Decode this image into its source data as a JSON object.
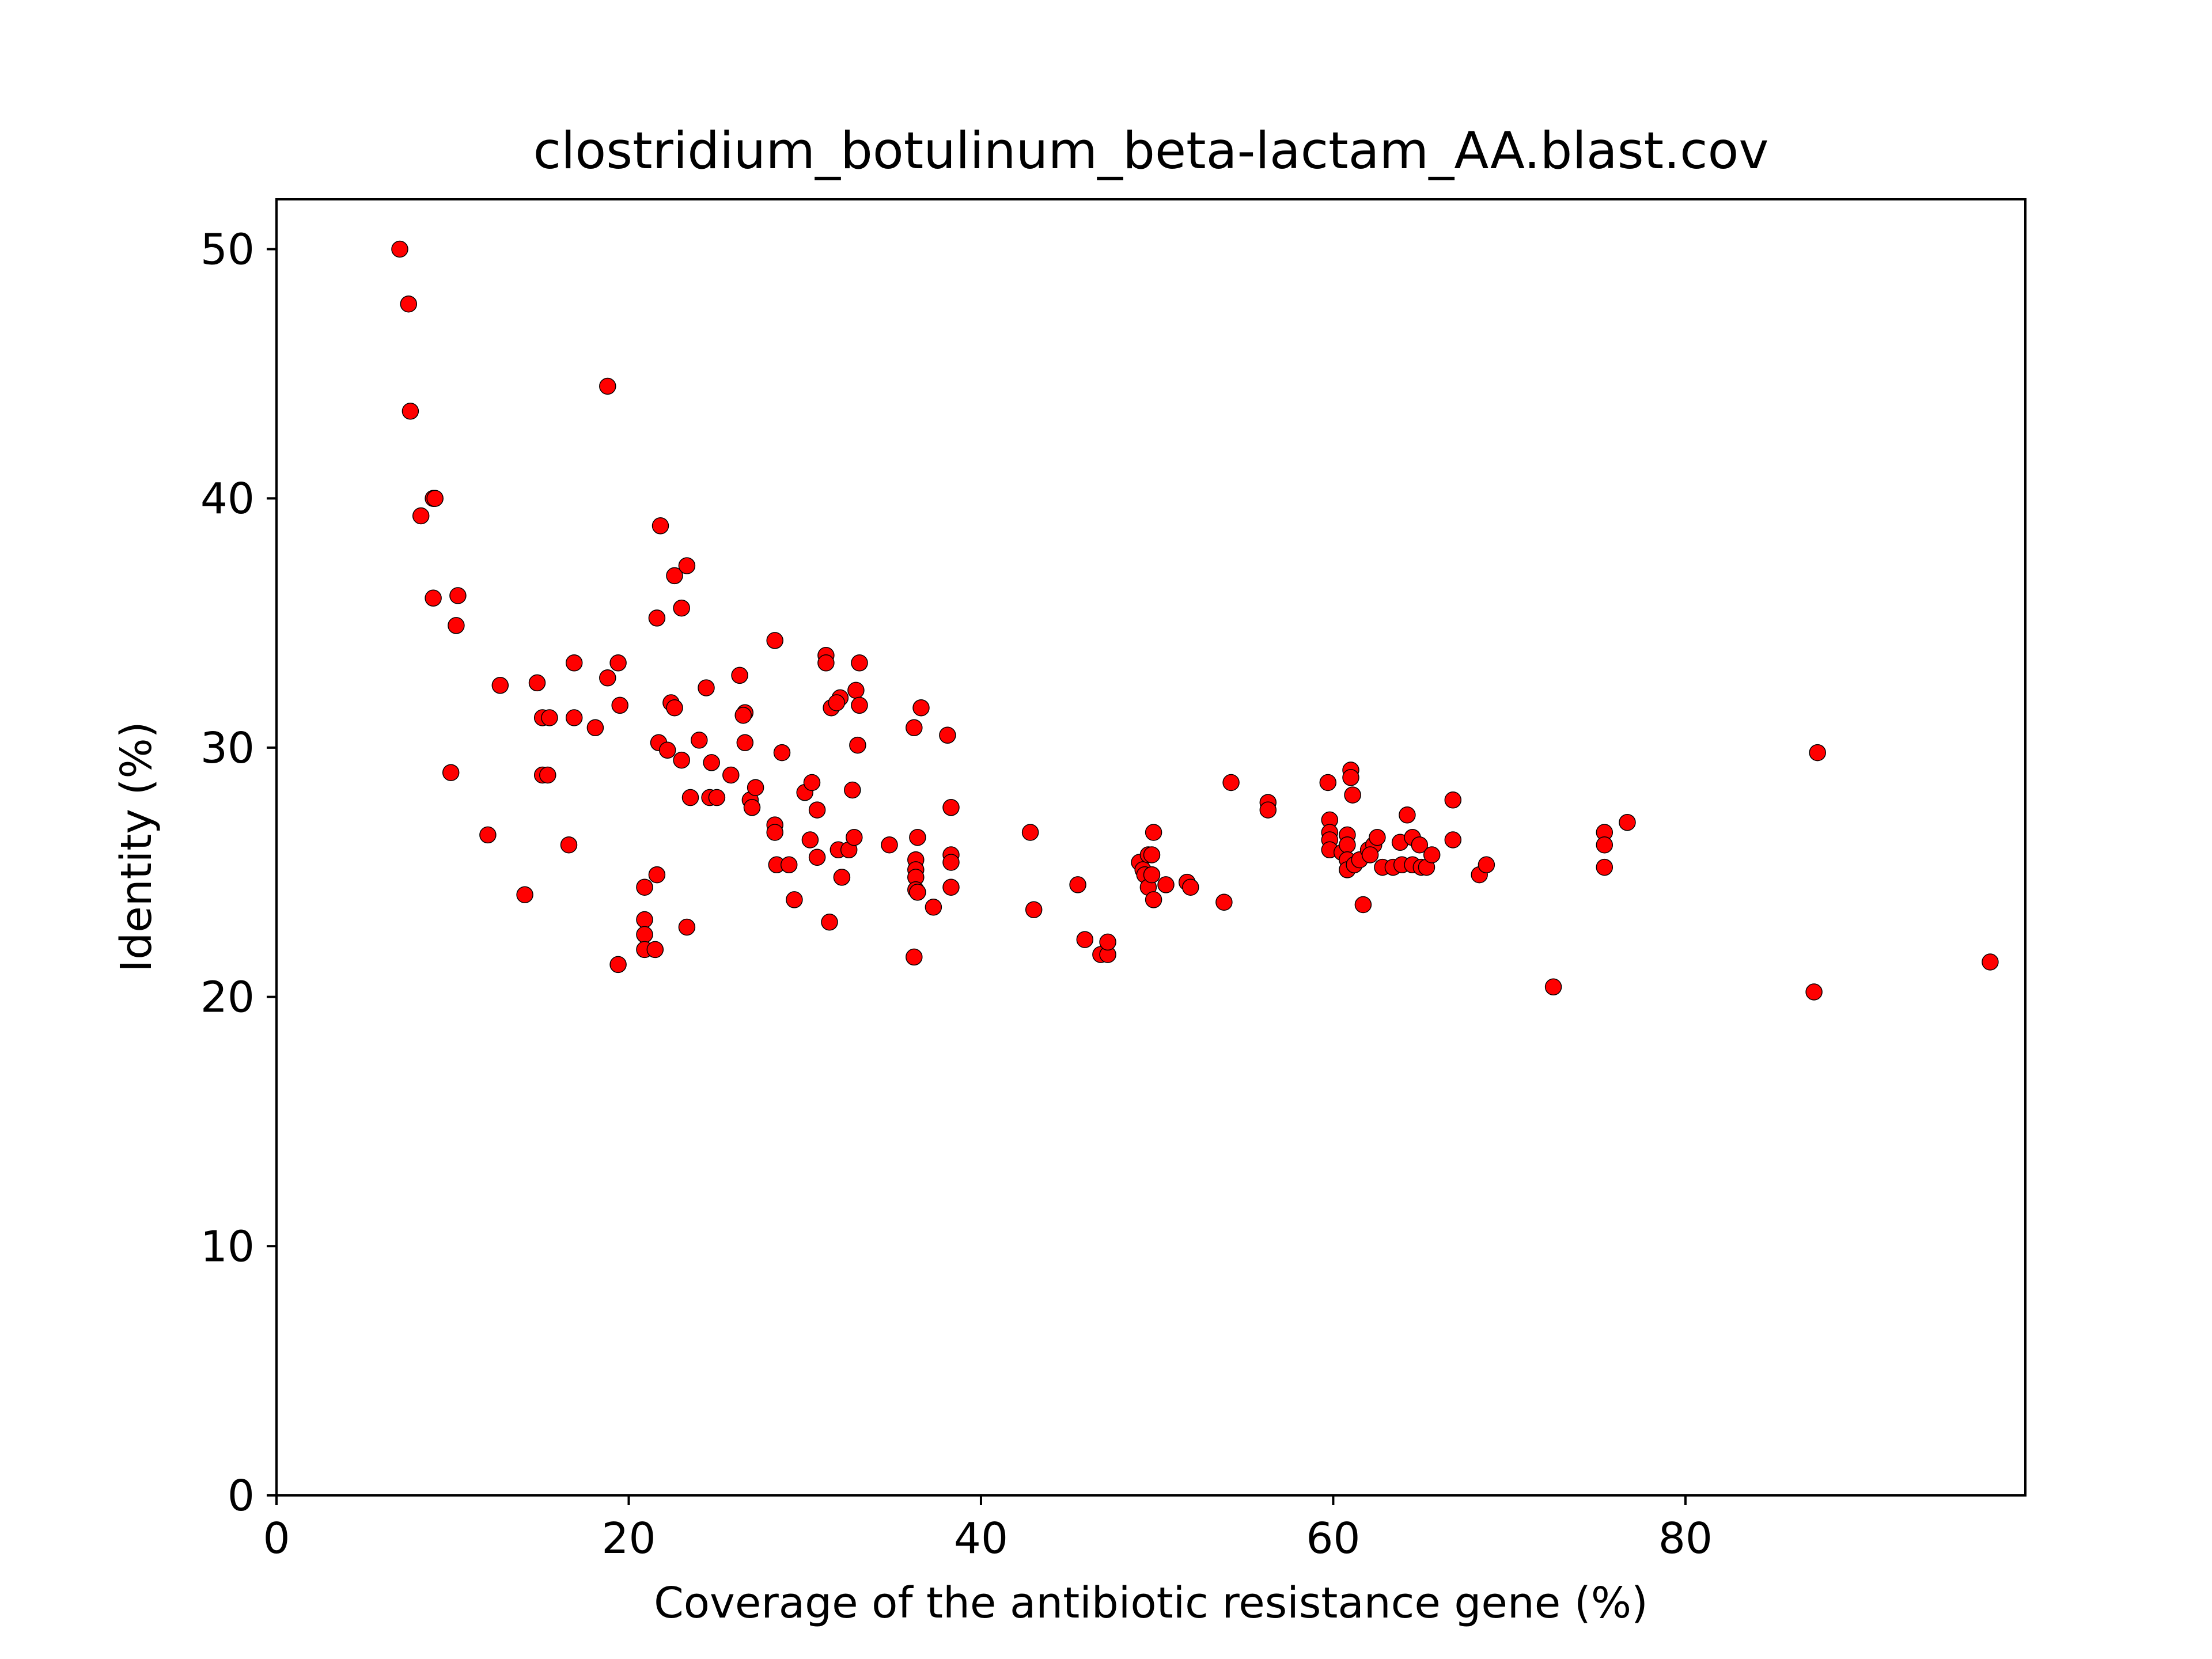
{
  "chart_data": {
    "type": "scatter",
    "title": "clostridium_botulinum_beta-lactam_AA.blast.cov",
    "xlabel": "Coverage of the antibiotic resistance gene (%)",
    "ylabel": "Identity (%)",
    "xlim": [
      0,
      99.3
    ],
    "ylim": [
      0,
      52
    ],
    "xticks": [
      "0",
      "20",
      "40",
      "60",
      "80"
    ],
    "yticks": [
      "0",
      "10",
      "20",
      "30",
      "40",
      "50"
    ],
    "grid": false,
    "marker_color": "#ff0000",
    "marker_edge_color": "#000000",
    "points": [
      [
        7.0,
        50.0
      ],
      [
        7.5,
        47.8
      ],
      [
        7.6,
        43.5
      ],
      [
        8.2,
        39.3
      ],
      [
        8.9,
        40.0
      ],
      [
        9.0,
        40.0
      ],
      [
        8.9,
        36.0
      ],
      [
        10.3,
        36.1
      ],
      [
        10.2,
        34.9
      ],
      [
        9.9,
        29.0
      ],
      [
        12.0,
        26.5
      ],
      [
        12.7,
        32.5
      ],
      [
        14.1,
        24.1
      ],
      [
        14.8,
        32.6
      ],
      [
        15.1,
        31.2
      ],
      [
        15.5,
        31.2
      ],
      [
        15.1,
        28.9
      ],
      [
        15.4,
        28.9
      ],
      [
        16.6,
        26.1
      ],
      [
        16.9,
        33.4
      ],
      [
        16.9,
        31.2
      ],
      [
        18.1,
        30.8
      ],
      [
        18.8,
        32.8
      ],
      [
        19.4,
        33.4
      ],
      [
        19.5,
        31.7
      ],
      [
        19.4,
        21.3
      ],
      [
        18.8,
        44.5
      ],
      [
        21.8,
        38.9
      ],
      [
        22.6,
        36.9
      ],
      [
        23.3,
        37.3
      ],
      [
        21.6,
        35.2
      ],
      [
        23.0,
        35.6
      ],
      [
        22.4,
        31.8
      ],
      [
        22.6,
        31.6
      ],
      [
        24.4,
        32.4
      ],
      [
        21.7,
        30.2
      ],
      [
        22.2,
        29.9
      ],
      [
        23.0,
        29.5
      ],
      [
        24.0,
        30.3
      ],
      [
        24.7,
        29.4
      ],
      [
        23.5,
        28.0
      ],
      [
        24.6,
        28.0
      ],
      [
        25.0,
        28.0
      ],
      [
        25.8,
        28.9
      ],
      [
        21.6,
        24.9
      ],
      [
        20.9,
        24.4
      ],
      [
        20.9,
        23.1
      ],
      [
        20.9,
        22.5
      ],
      [
        20.9,
        21.9
      ],
      [
        21.5,
        21.9
      ],
      [
        23.3,
        22.8
      ],
      [
        26.3,
        32.9
      ],
      [
        26.6,
        31.4
      ],
      [
        26.5,
        31.3
      ],
      [
        26.6,
        30.2
      ],
      [
        26.9,
        27.9
      ],
      [
        27.0,
        27.6
      ],
      [
        27.2,
        28.4
      ],
      [
        28.3,
        34.3
      ],
      [
        28.3,
        26.9
      ],
      [
        28.3,
        26.6
      ],
      [
        28.7,
        29.8
      ],
      [
        28.4,
        25.3
      ],
      [
        29.1,
        25.3
      ],
      [
        29.4,
        23.9
      ],
      [
        30.0,
        28.2
      ],
      [
        30.4,
        28.6
      ],
      [
        30.3,
        26.3
      ],
      [
        30.7,
        27.5
      ],
      [
        30.7,
        25.6
      ],
      [
        31.2,
        33.7
      ],
      [
        31.2,
        33.4
      ],
      [
        31.5,
        31.6
      ],
      [
        32.0,
        32.0
      ],
      [
        31.8,
        31.8
      ],
      [
        32.1,
        24.8
      ],
      [
        31.9,
        25.9
      ],
      [
        32.5,
        25.9
      ],
      [
        31.4,
        23.0
      ],
      [
        32.8,
        26.4
      ],
      [
        32.7,
        28.3
      ],
      [
        32.9,
        32.3
      ],
      [
        33.1,
        31.7
      ],
      [
        33.0,
        30.1
      ],
      [
        33.1,
        33.4
      ],
      [
        34.8,
        26.1
      ],
      [
        36.2,
        30.8
      ],
      [
        36.6,
        31.6
      ],
      [
        36.4,
        26.4
      ],
      [
        36.3,
        25.5
      ],
      [
        36.3,
        25.1
      ],
      [
        36.3,
        24.8
      ],
      [
        36.3,
        24.3
      ],
      [
        36.4,
        24.2
      ],
      [
        36.2,
        21.6
      ],
      [
        37.3,
        23.6
      ],
      [
        38.1,
        30.5
      ],
      [
        38.3,
        27.6
      ],
      [
        38.3,
        25.7
      ],
      [
        38.3,
        25.4
      ],
      [
        38.3,
        24.4
      ],
      [
        42.8,
        26.6
      ],
      [
        43.0,
        23.5
      ],
      [
        45.5,
        24.5
      ],
      [
        45.9,
        22.3
      ],
      [
        46.8,
        21.7
      ],
      [
        47.2,
        21.7
      ],
      [
        47.2,
        22.2
      ],
      [
        49.0,
        25.4
      ],
      [
        49.2,
        25.1
      ],
      [
        49.5,
        25.7
      ],
      [
        49.3,
        24.9
      ],
      [
        49.5,
        24.4
      ],
      [
        49.7,
        25.7
      ],
      [
        49.7,
        24.9
      ],
      [
        49.8,
        23.9
      ],
      [
        49.8,
        26.6
      ],
      [
        50.5,
        24.5
      ],
      [
        51.7,
        24.6
      ],
      [
        51.9,
        24.4
      ],
      [
        53.8,
        23.8
      ],
      [
        54.2,
        28.6
      ],
      [
        56.3,
        27.8
      ],
      [
        56.3,
        27.5
      ],
      [
        59.7,
        28.6
      ],
      [
        59.8,
        27.1
      ],
      [
        59.8,
        26.6
      ],
      [
        59.8,
        26.3
      ],
      [
        59.8,
        25.9
      ],
      [
        60.5,
        25.8
      ],
      [
        60.8,
        26.5
      ],
      [
        60.8,
        26.1
      ],
      [
        60.8,
        25.5
      ],
      [
        60.8,
        25.1
      ],
      [
        61.0,
        29.1
      ],
      [
        61.0,
        28.8
      ],
      [
        61.1,
        28.1
      ],
      [
        61.2,
        25.3
      ],
      [
        61.5,
        25.5
      ],
      [
        61.7,
        23.7
      ],
      [
        62.0,
        25.9
      ],
      [
        62.3,
        26.1
      ],
      [
        62.1,
        25.7
      ],
      [
        62.5,
        26.4
      ],
      [
        62.8,
        25.2
      ],
      [
        63.4,
        25.2
      ],
      [
        63.8,
        26.2
      ],
      [
        63.9,
        25.3
      ],
      [
        64.2,
        27.3
      ],
      [
        64.5,
        26.4
      ],
      [
        64.5,
        25.3
      ],
      [
        64.9,
        26.1
      ],
      [
        65.0,
        25.2
      ],
      [
        65.3,
        25.2
      ],
      [
        65.6,
        25.7
      ],
      [
        66.8,
        27.9
      ],
      [
        66.8,
        26.3
      ],
      [
        68.3,
        24.9
      ],
      [
        68.7,
        25.3
      ],
      [
        72.5,
        20.4
      ],
      [
        75.4,
        26.6
      ],
      [
        75.4,
        26.1
      ],
      [
        75.4,
        25.2
      ],
      [
        76.7,
        27.0
      ],
      [
        87.3,
        20.2
      ],
      [
        87.5,
        29.8
      ],
      [
        97.3,
        21.4
      ]
    ]
  }
}
